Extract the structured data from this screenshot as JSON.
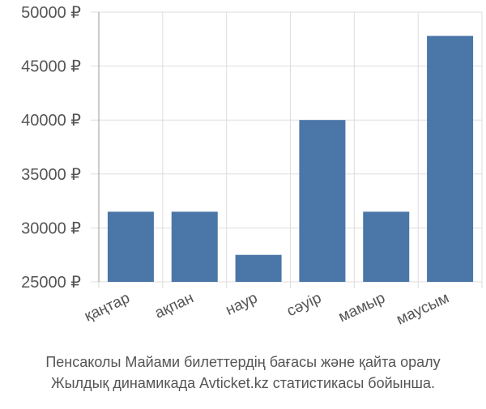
{
  "chart_data": {
    "type": "bar",
    "caption": [
      "Пенсаколы Майами билеттердің бағасы және қайта оралу",
      "Жылдық динамикада Avticket.kz статистикасы бойынша."
    ],
    "categories": [
      "қаңтар",
      "ақпан",
      "наур",
      "сәуір",
      "мамыр",
      "маусым"
    ],
    "values": [
      31500,
      31500,
      27500,
      40000,
      31500,
      47800
    ],
    "color": "#4a76a8",
    "ylim": [
      25000,
      50000
    ],
    "yticks": [
      {
        "value": 25000,
        "label": "25000 ₽"
      },
      {
        "value": 30000,
        "label": "30000 ₽"
      },
      {
        "value": 35000,
        "label": "35000 ₽"
      },
      {
        "value": 40000,
        "label": "40000 ₽"
      },
      {
        "value": 45000,
        "label": "45000 ₽"
      },
      {
        "value": 50000,
        "label": "50000 ₽"
      }
    ],
    "grid": true
  }
}
